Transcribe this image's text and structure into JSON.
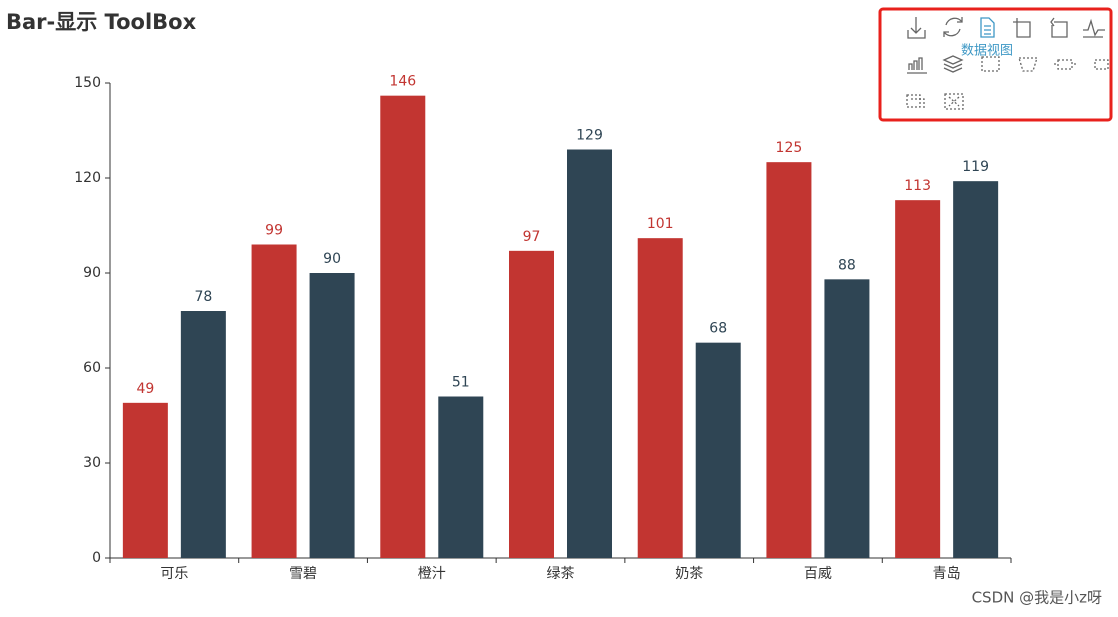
{
  "chart_data": {
    "type": "bar",
    "title": "Bar-显示 ToolBox",
    "categories": [
      "可乐",
      "雪碧",
      "橙汁",
      "绿茶",
      "奶茶",
      "百威",
      "青岛"
    ],
    "series": [
      {
        "color": "#c23531",
        "values": [
          49,
          99,
          146,
          97,
          101,
          125,
          113
        ]
      },
      {
        "color": "#2f4554",
        "values": [
          78,
          90,
          51,
          129,
          68,
          88,
          119
        ]
      }
    ],
    "ylim": [
      0,
      150
    ],
    "yticks": [
      0,
      30,
      60,
      90,
      120,
      150
    ],
    "grid": false,
    "toolbox_tooltip": "数据视图",
    "watermark": "CSDN @我是小z呀"
  }
}
